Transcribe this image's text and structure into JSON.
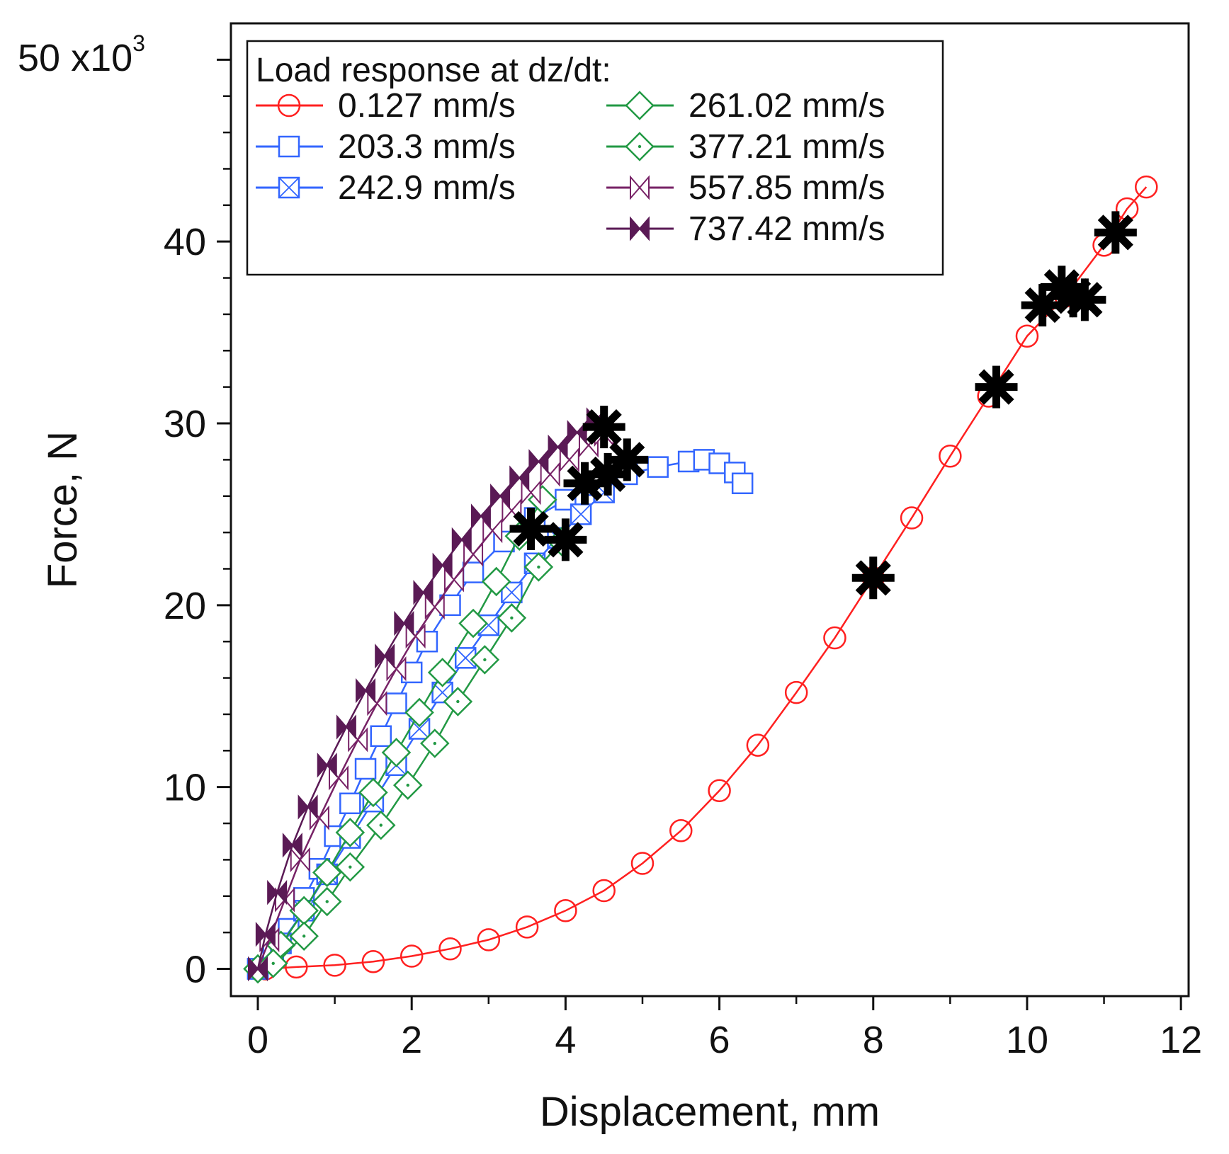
{
  "chart_data": {
    "type": "line",
    "title": "",
    "xlabel": "Displacement, mm",
    "ylabel": "Force, N",
    "y_scale_label": "50 x10",
    "y_scale_exponent": "3",
    "xlim": [
      -0.35,
      12.1
    ],
    "ylim": [
      -1500,
      52000
    ],
    "x_ticks": [
      0,
      2,
      4,
      6,
      8,
      10,
      12
    ],
    "x_tick_labels": [
      "0",
      "2",
      "4",
      "6",
      "8",
      "10",
      "12"
    ],
    "y_ticks": [
      0,
      10000,
      20000,
      30000,
      40000
    ],
    "y_tick_labels": [
      "0",
      "10",
      "20",
      "30",
      "40"
    ],
    "legend": {
      "title": "Load response at dz/dt:",
      "placement": "top-left"
    },
    "series": [
      {
        "name": "0.127 mm/s",
        "color": "#ff2020",
        "marker": "circle",
        "x": [
          0.1,
          0.5,
          1.0,
          1.5,
          2.0,
          2.5,
          3.0,
          3.5,
          4.0,
          4.5,
          5.0,
          5.5,
          6.0,
          6.5,
          7.0,
          7.5,
          8.0,
          8.5,
          9.0,
          9.5,
          10.0,
          10.5,
          11.0,
          11.3,
          11.55
        ],
        "y": [
          0,
          100,
          200,
          400,
          700,
          1100,
          1600,
          2300,
          3200,
          4300,
          5800,
          7600,
          9800,
          12300,
          15200,
          18200,
          21500,
          24800,
          28200,
          31500,
          34800,
          37000,
          39800,
          41800,
          43000
        ]
      },
      {
        "name": "203.3 mm/s",
        "color": "#3366ff",
        "marker": "square",
        "x": [
          0,
          0.2,
          0.4,
          0.6,
          0.8,
          1.0,
          1.2,
          1.4,
          1.6,
          1.8,
          2.0,
          2.2,
          2.5,
          2.8,
          3.2,
          3.6,
          4.0,
          4.4,
          4.8,
          5.2,
          5.6,
          5.8,
          6.0,
          6.2,
          6.3
        ],
        "y": [
          0,
          800,
          2200,
          3900,
          5500,
          7300,
          9100,
          11000,
          12800,
          14600,
          16300,
          18000,
          20000,
          21800,
          23500,
          24800,
          25800,
          26600,
          27200,
          27600,
          27900,
          28000,
          27800,
          27300,
          26700
        ]
      },
      {
        "name": "242.9 mm/s",
        "color": "#3366ff",
        "marker": "square-x",
        "x": [
          0,
          0.3,
          0.6,
          0.9,
          1.2,
          1.5,
          1.8,
          2.1,
          2.4,
          2.7,
          3.0,
          3.3,
          3.6,
          3.9,
          4.2,
          4.5
        ],
        "y": [
          0,
          1400,
          3200,
          5200,
          7200,
          9200,
          11200,
          13200,
          15200,
          17100,
          18900,
          20700,
          22300,
          23700,
          25000,
          26200
        ]
      },
      {
        "name": "261.02 mm/s",
        "color": "#229944",
        "marker": "diamond",
        "x": [
          0,
          0.3,
          0.6,
          0.9,
          1.2,
          1.5,
          1.8,
          2.1,
          2.4,
          2.8,
          3.1,
          3.4,
          3.7
        ],
        "y": [
          0,
          1300,
          3200,
          5300,
          7500,
          9700,
          11900,
          14100,
          16300,
          19000,
          21300,
          23800,
          25800
        ]
      },
      {
        "name": "377.21 mm/s",
        "color": "#229944",
        "marker": "diamond-dot",
        "x": [
          0,
          0.2,
          0.6,
          0.9,
          1.2,
          1.6,
          1.95,
          2.3,
          2.6,
          2.95,
          3.3,
          3.65,
          3.95
        ],
        "y": [
          0,
          300,
          1800,
          3700,
          5600,
          7900,
          10100,
          12400,
          14700,
          17000,
          19300,
          22100,
          23500
        ]
      },
      {
        "name": "557.85 mm/s",
        "color": "#772266",
        "marker": "bowtie-open",
        "x": [
          0,
          0.15,
          0.35,
          0.55,
          0.8,
          1.05,
          1.3,
          1.55,
          1.8,
          2.05,
          2.3,
          2.55,
          2.8,
          3.05,
          3.3,
          3.55,
          3.8,
          4.05,
          4.3,
          4.5
        ],
        "y": [
          0,
          1600,
          3800,
          6000,
          8300,
          10500,
          12600,
          14600,
          16500,
          18300,
          19900,
          21400,
          22800,
          24100,
          25200,
          26200,
          27200,
          28000,
          28800,
          29400
        ]
      },
      {
        "name": "737.42 mm/s",
        "color": "#5a1a55",
        "marker": "bowtie-filled",
        "x": [
          0,
          0.1,
          0.25,
          0.45,
          0.65,
          0.9,
          1.15,
          1.4,
          1.65,
          1.9,
          2.15,
          2.4,
          2.65,
          2.9,
          3.15,
          3.4,
          3.65,
          3.9,
          4.15,
          4.4
        ],
        "y": [
          0,
          1900,
          4200,
          6800,
          8900,
          11200,
          13300,
          15300,
          17200,
          19000,
          20700,
          22200,
          23600,
          24900,
          26000,
          27000,
          27900,
          28700,
          29500,
          30200
        ]
      }
    ],
    "failure_points": {
      "name": "failure markers",
      "x": [
        8.0,
        9.6,
        10.2,
        10.45,
        10.6,
        10.75,
        11.15,
        3.55,
        4.0,
        4.25,
        4.5,
        4.55,
        4.8
      ],
      "y": [
        21500,
        32000,
        36500,
        37500,
        37000,
        36800,
        40500,
        24200,
        23600,
        26700,
        29800,
        27200,
        28000
      ]
    }
  }
}
